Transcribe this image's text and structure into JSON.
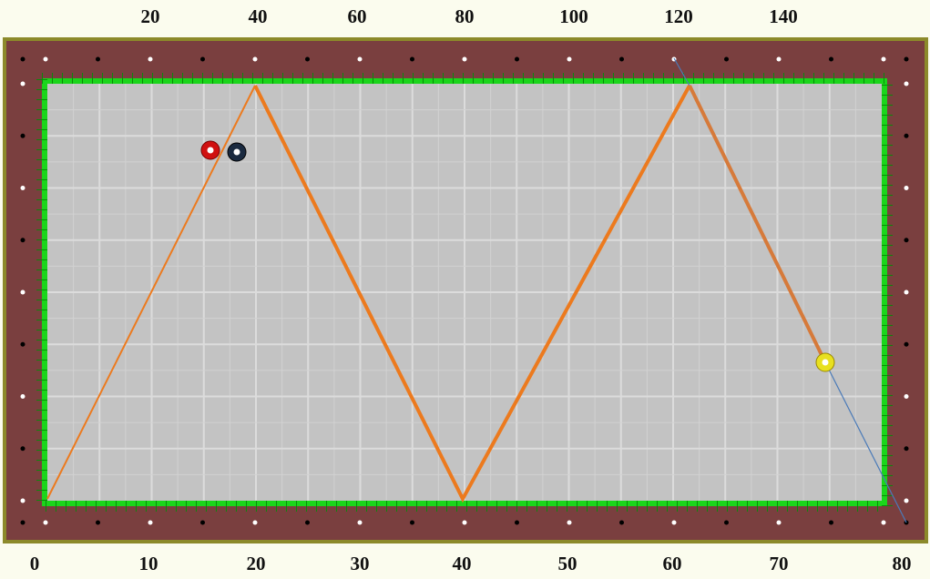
{
  "top_labels": [
    "20",
    "40",
    "60",
    "80",
    "100",
    "120",
    "140"
  ],
  "bottom_labels": [
    "0",
    "10",
    "20",
    "30",
    "40",
    "50",
    "60",
    "70",
    "80"
  ]
}
